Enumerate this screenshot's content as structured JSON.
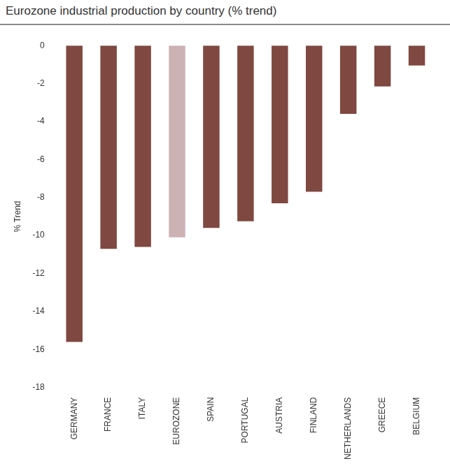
{
  "chart_data": {
    "type": "bar",
    "title": "Eurozone industrial production by country (% trend)",
    "y_label": "% Trend",
    "categories": [
      "GERMANY",
      "FRANCE",
      "ITALY",
      "EUROZONE",
      "SPAIN",
      "PORTUGAL",
      "AUSTRIA",
      "FINLAND",
      "NETHERLANDS",
      "GREECE",
      "BELGIUM"
    ],
    "values": [
      -15.6,
      -10.7,
      -10.6,
      -10.1,
      -9.6,
      -9.25,
      -8.3,
      -7.7,
      -3.6,
      -2.15,
      -1.05
    ],
    "colors": [
      "#7f4840",
      "#7f4840",
      "#7f4840",
      "#cdb2b4",
      "#7f4840",
      "#7f4840",
      "#7f4840",
      "#7f4840",
      "#7f4840",
      "#7f4840",
      "#7f4840"
    ],
    "ylim": [
      -18,
      0
    ],
    "yticks": [
      -18,
      -16,
      -14,
      -12,
      -10,
      -8,
      -6,
      -4,
      -2,
      0
    ],
    "grid": false
  }
}
